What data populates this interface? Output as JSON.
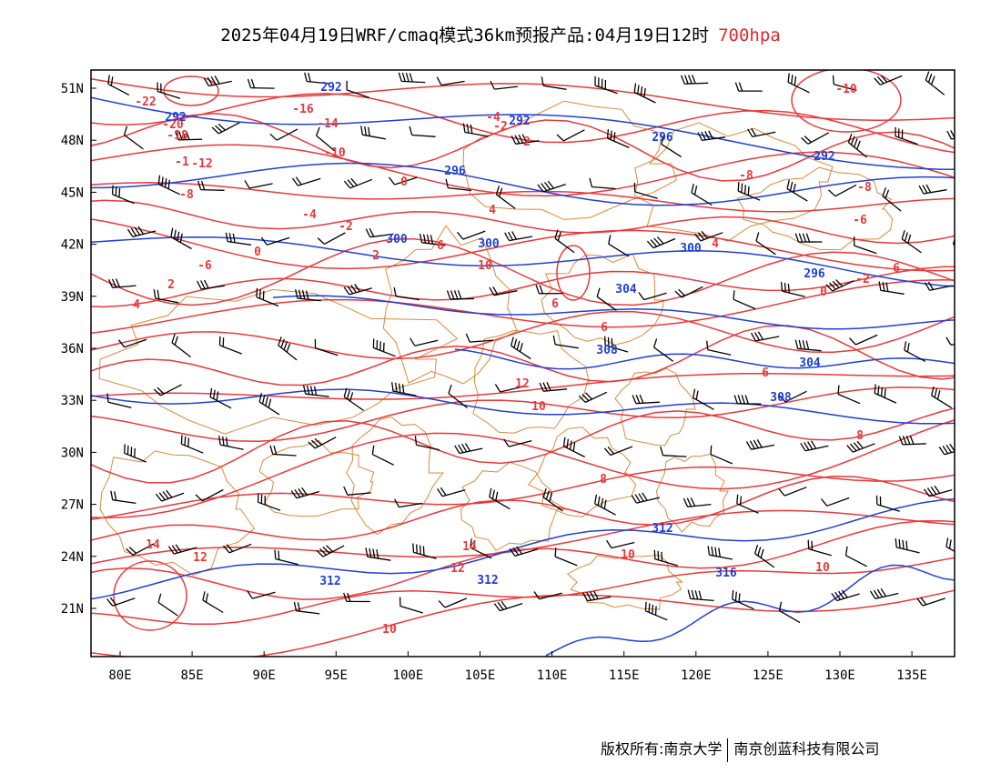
{
  "title": {
    "main": "2025年04月19日WRF/cmaq模式36km预报产品:04月19日12时",
    "level": "700hpa"
  },
  "colors": {
    "temperature": "#e8393b",
    "geopotential": "#1f3fd8",
    "boundary": "#d98a3c",
    "wind": "#000000",
    "frame": "#000000"
  },
  "map": {
    "lat_ticks": [
      "51N",
      "48N",
      "45N",
      "42N",
      "39N",
      "36N",
      "33N",
      "30N",
      "27N",
      "24N",
      "21N"
    ],
    "lon_ticks": [
      "80E",
      "85E",
      "90E",
      "95E",
      "100E",
      "105E",
      "110E",
      "115E",
      "120E",
      "125E",
      "130E",
      "135E"
    ],
    "lat_range": [
      18,
      52
    ],
    "lon_range": [
      78,
      138
    ],
    "temperature_labels": [
      "-22",
      "-20",
      "-18",
      "-16",
      "-14",
      "-12",
      "-10",
      "-10",
      "-8",
      "-8",
      "-8",
      "-6",
      "-6",
      "-4",
      "-4",
      "-2",
      "-2",
      "-2",
      "-1",
      "0",
      "0",
      "0",
      "2",
      "2",
      "2",
      "4",
      "4",
      "4",
      "6",
      "6",
      "6",
      "6",
      "6",
      "8",
      "8",
      "10",
      "10",
      "10",
      "12",
      "12",
      "14",
      "14",
      "10",
      "12",
      "10"
    ],
    "geopotential_labels": [
      "292",
      "292",
      "292",
      "292",
      "296",
      "296",
      "296",
      "300",
      "300",
      "300",
      "304",
      "304",
      "308",
      "308",
      "312",
      "312",
      "312",
      "316"
    ]
  },
  "footer": {
    "left": "版权所有:南京大学",
    "right": "南京创蓝科技有限公司"
  }
}
